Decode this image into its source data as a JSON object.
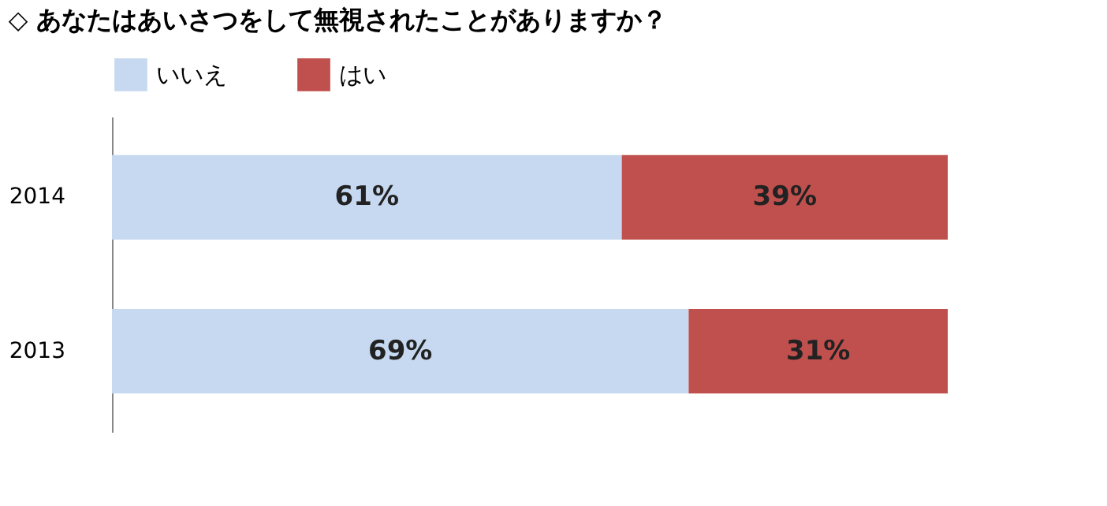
{
  "chart_data": {
    "type": "bar",
    "orientation": "horizontal",
    "stacked": true,
    "title": "◇ あなたはあいさつをして無視されたことがありますか？",
    "categories": [
      "2014",
      "2013"
    ],
    "series": [
      {
        "name": "いいえ",
        "color": "#c6d9f0",
        "values": [
          61,
          69
        ],
        "value_labels": [
          "61%",
          "69%"
        ]
      },
      {
        "name": "はい",
        "color": "#c0504d",
        "values": [
          39,
          31
        ],
        "value_labels": [
          "39%",
          "31%"
        ]
      }
    ],
    "legend": "top left",
    "grid": false
  }
}
